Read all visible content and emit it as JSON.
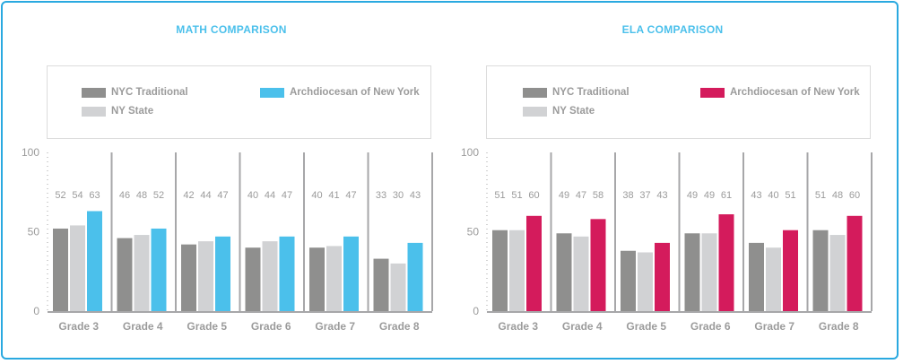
{
  "colors": {
    "frame": "#2aa9e0",
    "title": "#4bc0eb",
    "nyc": "#8f8f8e",
    "state": "#d1d2d4",
    "math_arch": "#4bc0eb",
    "ela_arch": "#d41b5c"
  },
  "chart_data": [
    {
      "type": "bar",
      "title": "MATH COMPARISON",
      "categories": [
        "Grade 3",
        "Grade 4",
        "Grade 5",
        "Grade 6",
        "Grade 7",
        "Grade 8"
      ],
      "series": [
        {
          "name": "NYC Traditional",
          "color": "#8f8f8e",
          "values": [
            52,
            46,
            42,
            40,
            40,
            33
          ]
        },
        {
          "name": "NY State",
          "color": "#d1d2d4",
          "values": [
            54,
            48,
            44,
            44,
            41,
            30
          ]
        },
        {
          "name": "Archdiocesan of New York",
          "color": "#4bc0eb",
          "values": [
            63,
            52,
            47,
            47,
            47,
            43
          ]
        }
      ],
      "yticks": [
        "0",
        "50",
        "100"
      ],
      "ylim": [
        0,
        100
      ],
      "legend": "top",
      "data_labels": true
    },
    {
      "type": "bar",
      "title": "ELA COMPARISON",
      "categories": [
        "Grade 3",
        "Grade 4",
        "Grade 5",
        "Grade 6",
        "Grade 7",
        "Grade 8"
      ],
      "series": [
        {
          "name": "NYC Traditional",
          "color": "#8f8f8e",
          "values": [
            51,
            49,
            38,
            49,
            43,
            51
          ]
        },
        {
          "name": "NY State",
          "color": "#d1d2d4",
          "values": [
            51,
            47,
            37,
            49,
            40,
            48
          ]
        },
        {
          "name": "Archdiocesan of New York",
          "color": "#d41b5c",
          "values": [
            60,
            58,
            43,
            61,
            51,
            60
          ]
        }
      ],
      "yticks": [
        "0",
        "50",
        "100"
      ],
      "ylim": [
        0,
        100
      ],
      "legend": "top",
      "data_labels": true
    }
  ]
}
